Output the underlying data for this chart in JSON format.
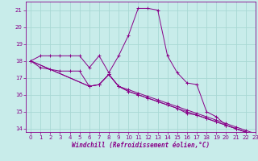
{
  "xlabel": "Windchill (Refroidissement éolien,°C)",
  "xlim": [
    -0.5,
    23
  ],
  "ylim": [
    13.8,
    21.5
  ],
  "yticks": [
    14,
    15,
    16,
    17,
    18,
    19,
    20,
    21
  ],
  "xticks": [
    0,
    1,
    2,
    3,
    4,
    5,
    6,
    7,
    8,
    9,
    10,
    11,
    12,
    13,
    14,
    15,
    16,
    17,
    18,
    19,
    20,
    21,
    22,
    23
  ],
  "background_color": "#c8ecea",
  "grid_color": "#a8d8d4",
  "line_color": "#880088",
  "lines": [
    {
      "x": [
        0,
        1,
        2,
        3,
        4,
        5,
        6,
        7,
        8,
        9,
        10,
        11,
        12,
        13,
        14,
        15,
        16,
        17,
        18,
        19,
        20,
        21,
        22,
        23
      ],
      "y": [
        18.0,
        18.3,
        18.3,
        18.3,
        18.3,
        18.3,
        17.6,
        18.3,
        17.3,
        18.3,
        19.5,
        21.1,
        21.1,
        21.0,
        18.3,
        17.3,
        16.7,
        16.6,
        15.0,
        14.7,
        14.2,
        14.0,
        13.8,
        13.7
      ]
    },
    {
      "x": [
        0,
        6,
        7,
        8,
        9,
        10,
        11,
        12,
        13,
        14,
        15,
        16,
        17,
        18,
        19,
        20,
        21,
        22,
        23
      ],
      "y": [
        18.0,
        16.5,
        16.6,
        17.2,
        16.5,
        16.3,
        16.1,
        15.9,
        15.7,
        15.5,
        15.3,
        15.1,
        14.9,
        14.7,
        14.5,
        14.3,
        14.1,
        13.9,
        13.7
      ]
    },
    {
      "x": [
        0,
        6,
        7,
        8,
        9,
        10,
        11,
        12,
        13,
        14,
        15,
        16,
        17,
        18,
        19,
        20,
        21,
        22,
        23
      ],
      "y": [
        18.0,
        16.5,
        16.6,
        17.2,
        16.5,
        16.2,
        16.0,
        15.8,
        15.6,
        15.4,
        15.2,
        15.0,
        14.8,
        14.6,
        14.4,
        14.2,
        14.0,
        13.8,
        13.6
      ]
    },
    {
      "x": [
        0,
        1,
        2,
        3,
        4,
        5,
        6,
        7,
        8,
        9,
        10,
        11,
        12,
        13,
        14,
        15,
        16,
        17,
        18,
        19,
        20,
        21,
        22,
        23
      ],
      "y": [
        18.0,
        17.6,
        17.5,
        17.4,
        17.4,
        17.4,
        16.5,
        16.6,
        17.2,
        16.5,
        16.2,
        16.0,
        15.8,
        15.6,
        15.4,
        15.2,
        14.9,
        14.8,
        14.6,
        14.4,
        14.2,
        14.0,
        13.8,
        13.6
      ]
    }
  ]
}
